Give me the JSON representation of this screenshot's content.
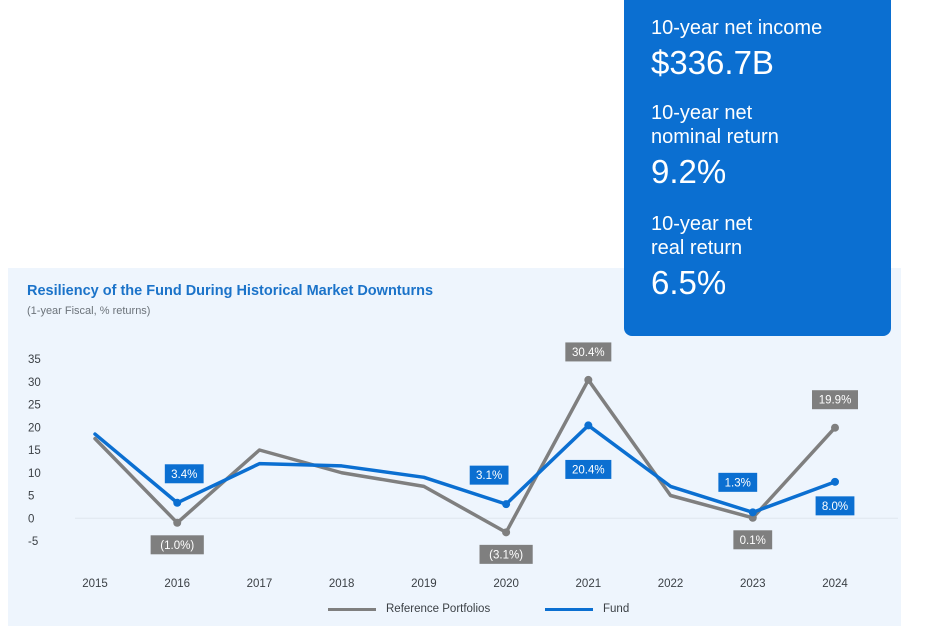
{
  "stats": [
    {
      "label": "10-year net income",
      "value": "$336.7B"
    },
    {
      "label": "10-year net\nnominal return",
      "value": "9.2%"
    },
    {
      "label": "10-year net\nreal return",
      "value": "6.5%"
    }
  ],
  "chart_data": {
    "type": "line",
    "title": "Resiliency of the Fund During Historical Market Downturns",
    "subtitle": "(1-year Fiscal, % returns)",
    "x": [
      "2015",
      "2016",
      "2017",
      "2018",
      "2019",
      "2020",
      "2021",
      "2022",
      "2023",
      "2024"
    ],
    "ylim": [
      -5,
      35
    ],
    "yticks": [
      35,
      30,
      25,
      20,
      15,
      10,
      5,
      0,
      -5
    ],
    "grid": false,
    "legend_position": "bottom",
    "series": [
      {
        "name": "Reference Portfolios",
        "color": "#7f7f7f",
        "values": [
          17.5,
          -1.0,
          15.0,
          10.0,
          7.0,
          -3.1,
          30.4,
          5.0,
          0.1,
          19.9
        ],
        "labels": {
          "1": "(1.0%)",
          "5": "(3.1%)",
          "6": "30.4%",
          "8": "0.1%",
          "9": "19.9%"
        }
      },
      {
        "name": "Fund",
        "color": "#0b6fd1",
        "values": [
          18.5,
          3.4,
          12.0,
          11.5,
          9.0,
          3.1,
          20.4,
          7.0,
          1.3,
          8.0
        ],
        "labels": {
          "1": "3.4%",
          "5": "3.1%",
          "6": "20.4%",
          "8": "1.3%",
          "9": "8.0%"
        }
      }
    ]
  }
}
